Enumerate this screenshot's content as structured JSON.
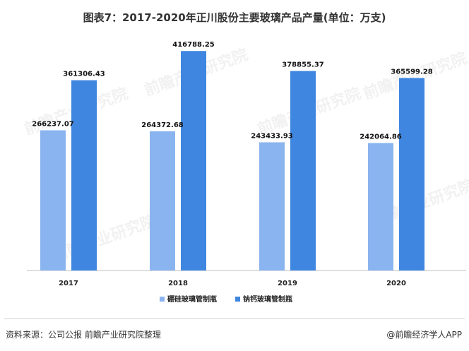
{
  "title": "图表7：2017-2020年正川股份主要玻璃产品产量(单位：万支)",
  "chart_data": {
    "type": "bar",
    "title": "图表7：2017-2020年正川股份主要玻璃产品产量(单位：万支)",
    "categories": [
      "2017",
      "2018",
      "2019",
      "2020"
    ],
    "series": [
      {
        "name": "硼硅玻璃管制瓶",
        "color": "#8ab4ef",
        "values": [
          266237.07,
          264372.68,
          243433.93,
          242064.86
        ],
        "labels": [
          "266237.07",
          "264372.68",
          "243433.93",
          "242064.86"
        ]
      },
      {
        "name": "钠钙玻璃管制瓶",
        "color": "#3f86e0",
        "values": [
          361306.43,
          416788.25,
          378855.37,
          365599.28
        ],
        "labels": [
          "361306.43",
          "416788.25",
          "378855.37",
          "365599.28"
        ]
      }
    ],
    "ylim": [
      0,
      460000
    ],
    "grid": false,
    "legend": "bottom-center"
  },
  "watermark": "前瞻产业研究院",
  "footer": {
    "source": "资料来源：公司公报 前瞻产业研究院整理",
    "brand": "@前瞻经济学人APP"
  }
}
